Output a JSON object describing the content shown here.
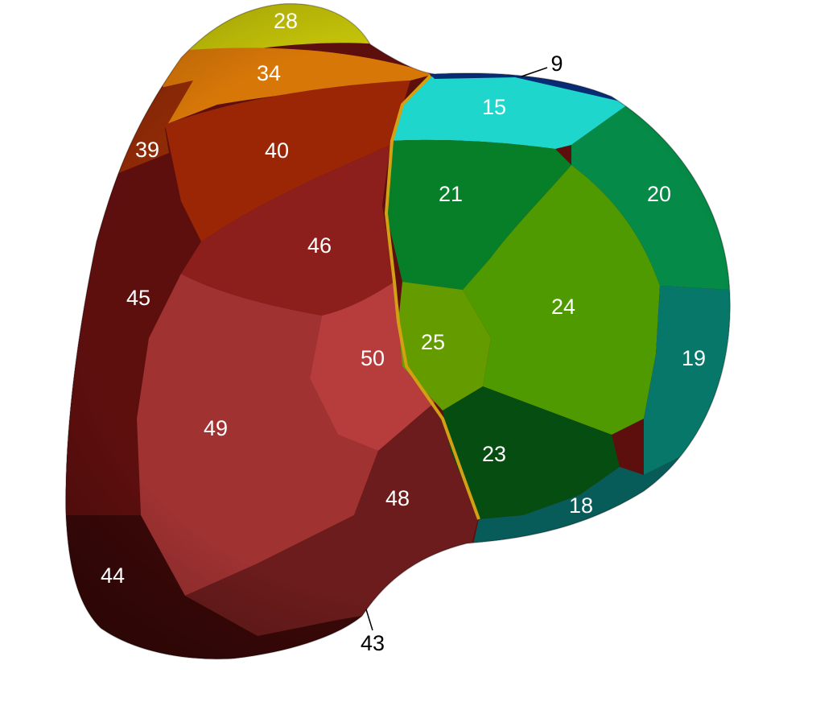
{
  "colors": {
    "background": "#ffffff",
    "seg_28": "#c5c409",
    "seg_34": "#d77708",
    "seg_40": "#9a2606",
    "seg_39": "#8f2a06",
    "seg_46": "#8c1e1c",
    "seg_45": "#5d0f0e",
    "seg_50": "#b73c3c",
    "seg_49": "#a03232",
    "seg_48": "#6c1c1c",
    "seg_44": "#3b0808",
    "seg_15": "#1fd6cc",
    "seg_21": "#077f28",
    "seg_20": "#058a47",
    "seg_24": "#4f9a00",
    "seg_25": "#649c00",
    "seg_19": "#07776a",
    "seg_23": "#054d10",
    "seg_18": "#075c5a",
    "seg_9": "#082c74",
    "seam": "#d2a012"
  },
  "labels": {
    "l9": "9",
    "l15": "15",
    "l18": "18",
    "l19": "19",
    "l20": "20",
    "l21": "21",
    "l23": "23",
    "l24": "24",
    "l25": "25",
    "l28": "28",
    "l34": "34",
    "l39": "39",
    "l40": "40",
    "l43": "43",
    "l44": "44",
    "l45": "45",
    "l46": "46",
    "l48": "48",
    "l49": "49",
    "l50": "50"
  }
}
